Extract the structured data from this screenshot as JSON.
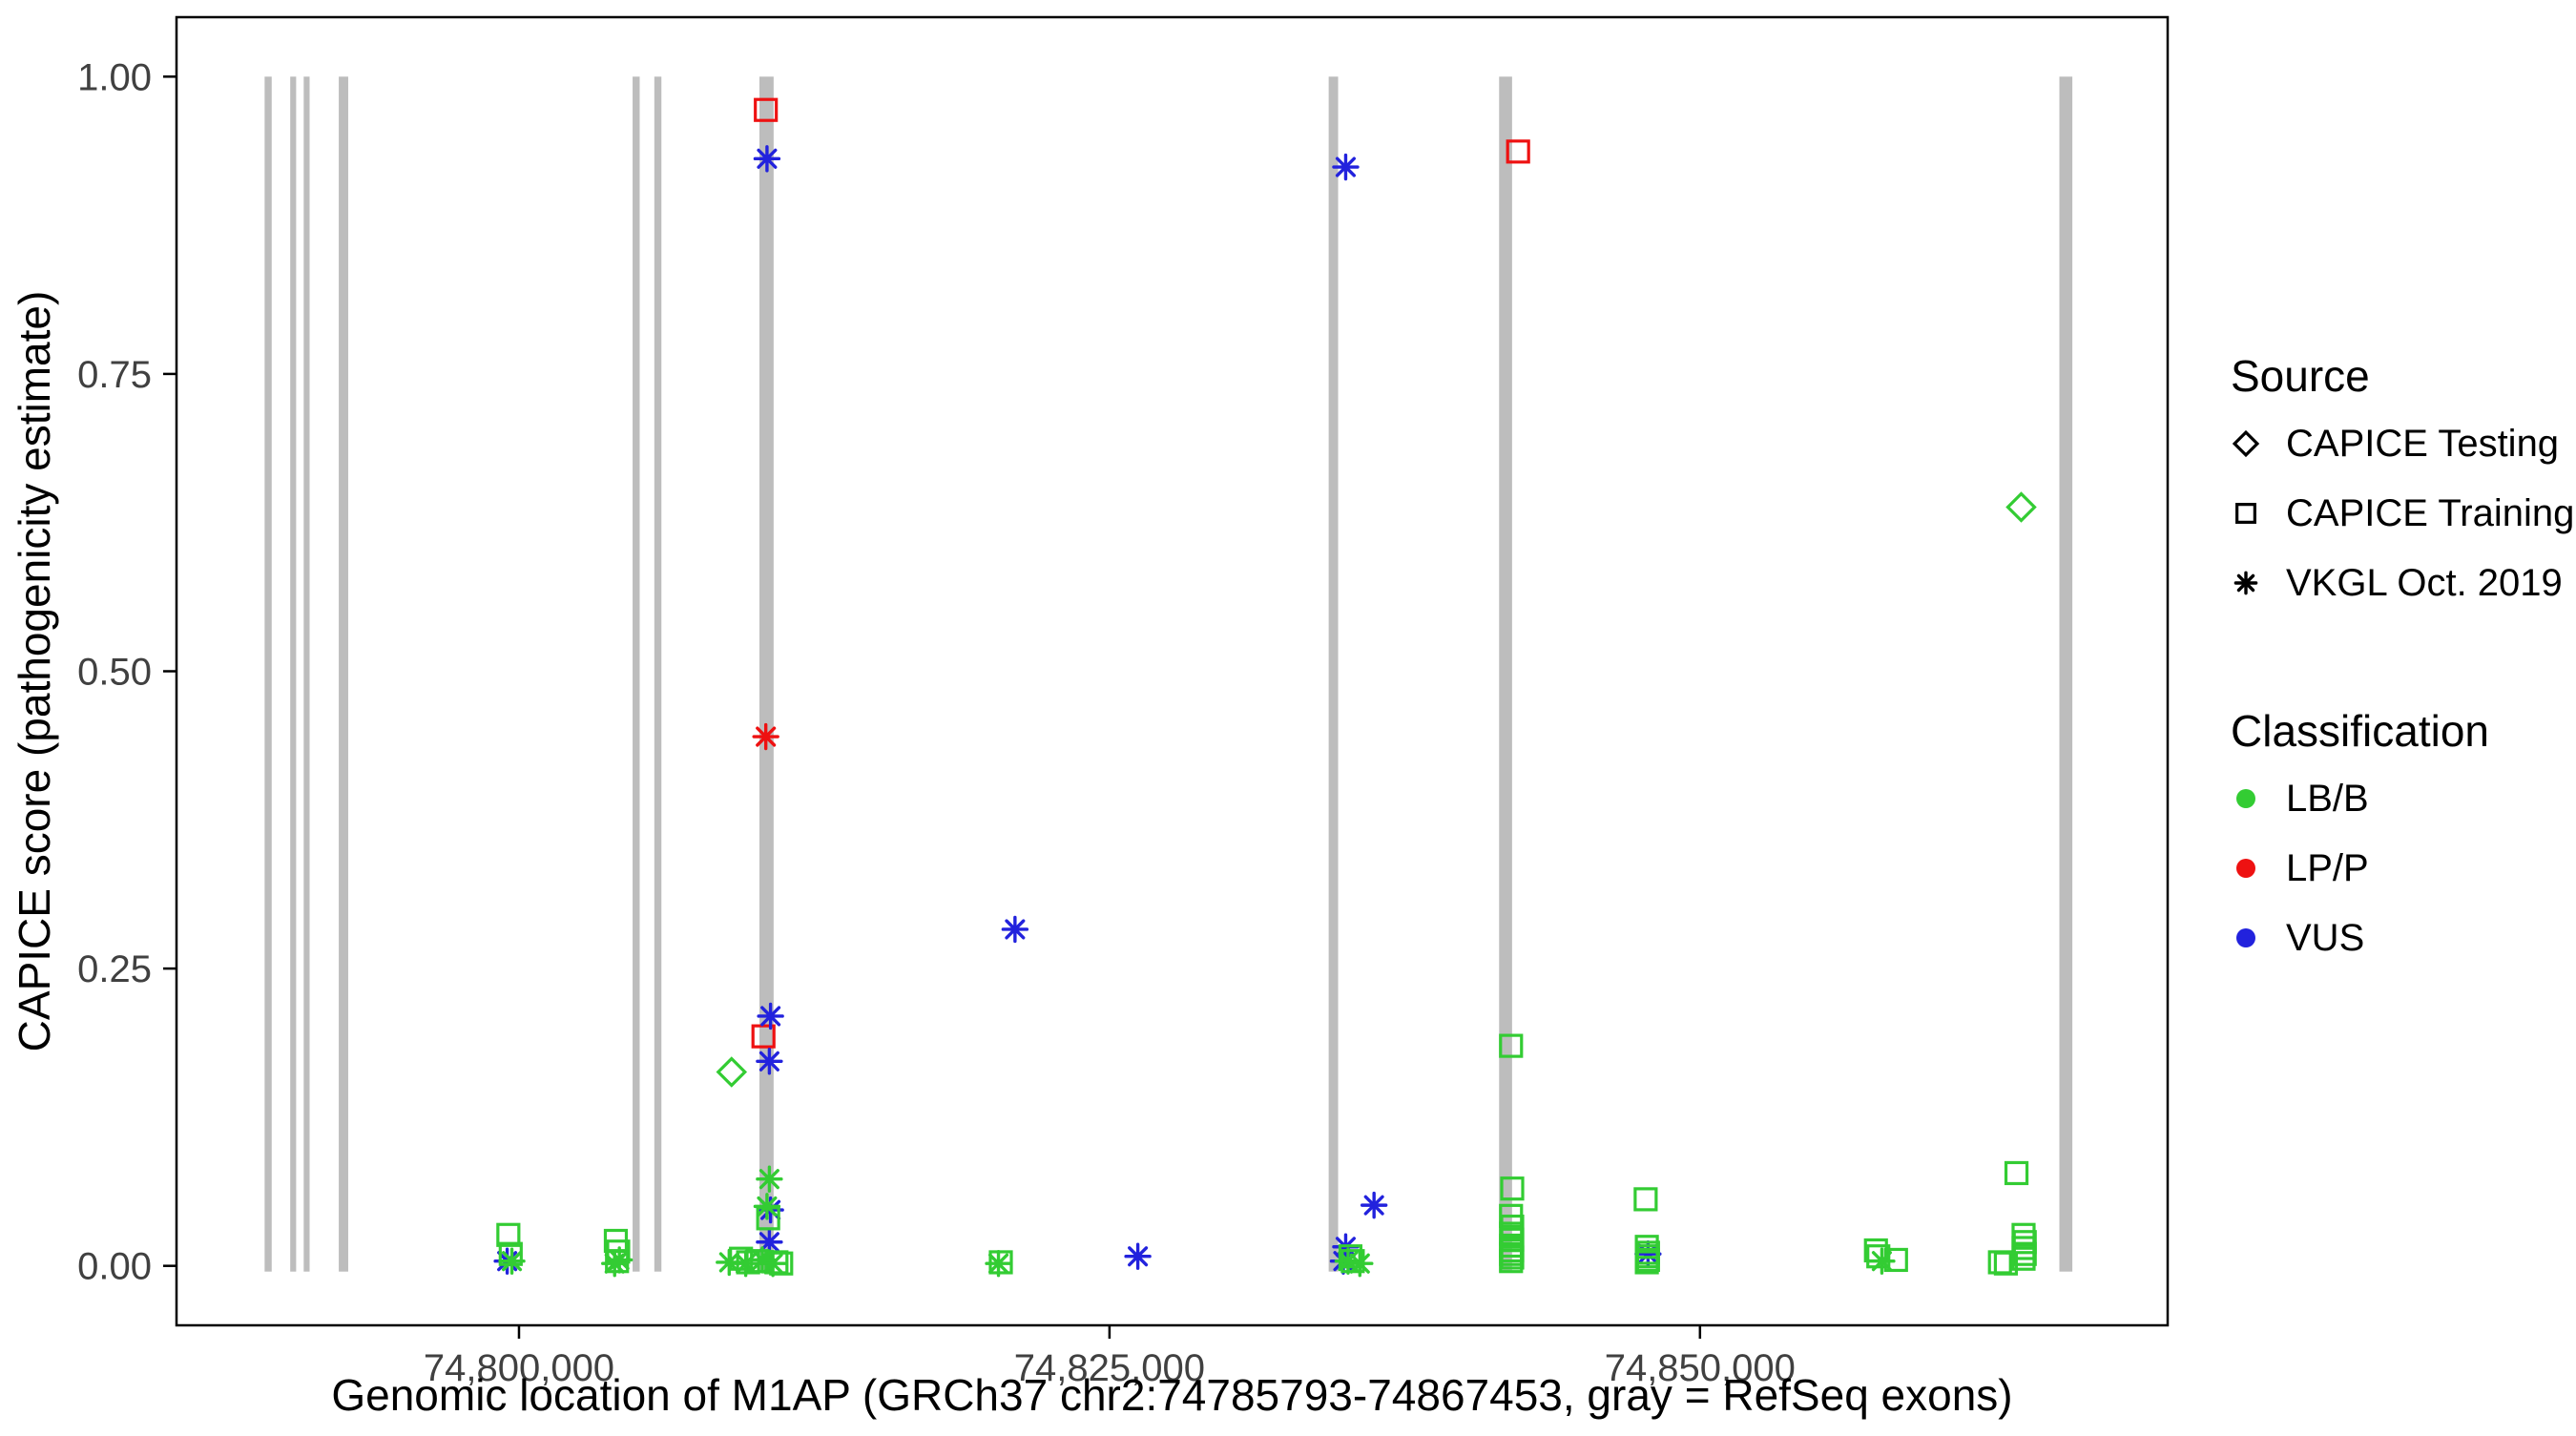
{
  "chart_data": {
    "type": "scatter",
    "title": "",
    "xlabel": "Genomic location of M1AP (GRCh37 chr2:74785793-74867453, gray = RefSeq exons)",
    "ylabel": "CAPICE score (pathogenicity estimate)",
    "xlim": [
      74785500,
      74869800
    ],
    "ylim": [
      -0.05,
      1.05
    ],
    "grid": "off",
    "x_ticks": [
      {
        "value": 74800000,
        "label": "74,800,000"
      },
      {
        "value": 74825000,
        "label": "74,825,000"
      },
      {
        "value": 74850000,
        "label": "74,850,000"
      }
    ],
    "y_ticks": [
      {
        "value": 0.0,
        "label": "0.00"
      },
      {
        "value": 0.25,
        "label": "0.25"
      },
      {
        "value": 0.5,
        "label": "0.50"
      },
      {
        "value": 0.75,
        "label": "0.75"
      },
      {
        "value": 1.0,
        "label": "1.00"
      }
    ],
    "exon_color": "#BDBDBD",
    "exons": [
      [
        74789230,
        74789530
      ],
      [
        74790315,
        74790565
      ],
      [
        74790885,
        74791135
      ],
      [
        74792370,
        74792770
      ],
      [
        74804810,
        74805110
      ],
      [
        74805730,
        74806030
      ],
      [
        74810180,
        74810780
      ],
      [
        74834280,
        74834680
      ],
      [
        74841495,
        74842045
      ],
      [
        74865215,
        74865765
      ]
    ],
    "legend": {
      "source_title": "Source",
      "sources": [
        {
          "label": "CAPICE Testing",
          "marker": "diamond"
        },
        {
          "label": "CAPICE Training",
          "marker": "square"
        },
        {
          "label": "VKGL Oct. 2019",
          "marker": "asterisk"
        }
      ],
      "classification_title": "Classification",
      "classifications": [
        {
          "label": "LB/B",
          "color": "#33CC33"
        },
        {
          "label": "LP/P",
          "color": "#EE1111"
        },
        {
          "label": "VUS",
          "color": "#2222DD"
        }
      ]
    },
    "points": [
      {
        "x": 74809000,
        "y": 0.163,
        "source": "CAPICE Testing",
        "classification": "LB/B"
      },
      {
        "x": 74863600,
        "y": 0.638,
        "source": "CAPICE Testing",
        "classification": "LB/B"
      },
      {
        "x": 74810450,
        "y": 0.972,
        "source": "CAPICE Training",
        "classification": "LP/P"
      },
      {
        "x": 74810350,
        "y": 0.193,
        "source": "CAPICE Training",
        "classification": "LP/P"
      },
      {
        "x": 74842300,
        "y": 0.937,
        "source": "CAPICE Training",
        "classification": "LP/P"
      },
      {
        "x": 74810450,
        "y": 0.445,
        "source": "VKGL Oct. 2019",
        "classification": "LP/P"
      },
      {
        "x": 74810500,
        "y": 0.931,
        "source": "VKGL Oct. 2019",
        "classification": "VUS"
      },
      {
        "x": 74835000,
        "y": 0.924,
        "source": "VKGL Oct. 2019",
        "classification": "VUS"
      },
      {
        "x": 74821000,
        "y": 0.283,
        "source": "VKGL Oct. 2019",
        "classification": "VUS"
      },
      {
        "x": 74810650,
        "y": 0.21,
        "source": "VKGL Oct. 2019",
        "classification": "VUS"
      },
      {
        "x": 74810600,
        "y": 0.172,
        "source": "VKGL Oct. 2019",
        "classification": "VUS"
      },
      {
        "x": 74810650,
        "y": 0.047,
        "source": "VKGL Oct. 2019",
        "classification": "VUS"
      },
      {
        "x": 74810600,
        "y": 0.02,
        "source": "VKGL Oct. 2019",
        "classification": "VUS"
      },
      {
        "x": 74826200,
        "y": 0.008,
        "source": "VKGL Oct. 2019",
        "classification": "VUS"
      },
      {
        "x": 74836200,
        "y": 0.051,
        "source": "VKGL Oct. 2019",
        "classification": "VUS"
      },
      {
        "x": 74835000,
        "y": 0.016,
        "source": "VKGL Oct. 2019",
        "classification": "VUS"
      },
      {
        "x": 74834900,
        "y": 0.004,
        "source": "VKGL Oct. 2019",
        "classification": "VUS"
      },
      {
        "x": 74799500,
        "y": 0.004,
        "source": "VKGL Oct. 2019",
        "classification": "VUS"
      },
      {
        "x": 74847800,
        "y": 0.01,
        "source": "VKGL Oct. 2019",
        "classification": "VUS"
      },
      {
        "x": 74799550,
        "y": 0.026,
        "source": "CAPICE Training",
        "classification": "LB/B"
      },
      {
        "x": 74799650,
        "y": 0.01,
        "source": "CAPICE Training",
        "classification": "LB/B"
      },
      {
        "x": 74804100,
        "y": 0.021,
        "source": "CAPICE Training",
        "classification": "LB/B"
      },
      {
        "x": 74804200,
        "y": 0.012,
        "source": "CAPICE Training",
        "classification": "LB/B"
      },
      {
        "x": 74804150,
        "y": 0.004,
        "source": "CAPICE Training",
        "classification": "LB/B"
      },
      {
        "x": 74810550,
        "y": 0.04,
        "source": "CAPICE Training",
        "classification": "LB/B"
      },
      {
        "x": 74809400,
        "y": 0.006,
        "source": "CAPICE Training",
        "classification": "LB/B"
      },
      {
        "x": 74809700,
        "y": 0.003,
        "source": "CAPICE Training",
        "classification": "LB/B"
      },
      {
        "x": 74810100,
        "y": 0.004,
        "source": "CAPICE Training",
        "classification": "LB/B"
      },
      {
        "x": 74810900,
        "y": 0.003,
        "source": "CAPICE Training",
        "classification": "LB/B"
      },
      {
        "x": 74811100,
        "y": 0.002,
        "source": "CAPICE Training",
        "classification": "LB/B"
      },
      {
        "x": 74820400,
        "y": 0.003,
        "source": "CAPICE Training",
        "classification": "LB/B"
      },
      {
        "x": 74835200,
        "y": 0.008,
        "source": "CAPICE Training",
        "classification": "LB/B"
      },
      {
        "x": 74835300,
        "y": 0.004,
        "source": "CAPICE Training",
        "classification": "LB/B"
      },
      {
        "x": 74842000,
        "y": 0.185,
        "source": "CAPICE Training",
        "classification": "LB/B"
      },
      {
        "x": 74842050,
        "y": 0.065,
        "source": "CAPICE Training",
        "classification": "LB/B"
      },
      {
        "x": 74842000,
        "y": 0.042,
        "source": "CAPICE Training",
        "classification": "LB/B"
      },
      {
        "x": 74842050,
        "y": 0.033,
        "source": "CAPICE Training",
        "classification": "LB/B"
      },
      {
        "x": 74842000,
        "y": 0.027,
        "source": "CAPICE Training",
        "classification": "LB/B"
      },
      {
        "x": 74842050,
        "y": 0.022,
        "source": "CAPICE Training",
        "classification": "LB/B"
      },
      {
        "x": 74842000,
        "y": 0.017,
        "source": "CAPICE Training",
        "classification": "LB/B"
      },
      {
        "x": 74842050,
        "y": 0.013,
        "source": "CAPICE Training",
        "classification": "LB/B"
      },
      {
        "x": 74842000,
        "y": 0.01,
        "source": "CAPICE Training",
        "classification": "LB/B"
      },
      {
        "x": 74842050,
        "y": 0.007,
        "source": "CAPICE Training",
        "classification": "LB/B"
      },
      {
        "x": 74842000,
        "y": 0.004,
        "source": "CAPICE Training",
        "classification": "LB/B"
      },
      {
        "x": 74847700,
        "y": 0.056,
        "source": "CAPICE Training",
        "classification": "LB/B"
      },
      {
        "x": 74847750,
        "y": 0.016,
        "source": "CAPICE Training",
        "classification": "LB/B"
      },
      {
        "x": 74847800,
        "y": 0.011,
        "source": "CAPICE Training",
        "classification": "LB/B"
      },
      {
        "x": 74847750,
        "y": 0.008,
        "source": "CAPICE Training",
        "classification": "LB/B"
      },
      {
        "x": 74847800,
        "y": 0.005,
        "source": "CAPICE Training",
        "classification": "LB/B"
      },
      {
        "x": 74847750,
        "y": 0.003,
        "source": "CAPICE Training",
        "classification": "LB/B"
      },
      {
        "x": 74857450,
        "y": 0.013,
        "source": "CAPICE Training",
        "classification": "LB/B"
      },
      {
        "x": 74857550,
        "y": 0.008,
        "source": "CAPICE Training",
        "classification": "LB/B"
      },
      {
        "x": 74858300,
        "y": 0.005,
        "source": "CAPICE Training",
        "classification": "LB/B"
      },
      {
        "x": 74863400,
        "y": 0.078,
        "source": "CAPICE Training",
        "classification": "LB/B"
      },
      {
        "x": 74863700,
        "y": 0.026,
        "source": "CAPICE Training",
        "classification": "LB/B"
      },
      {
        "x": 74863750,
        "y": 0.02,
        "source": "CAPICE Training",
        "classification": "LB/B"
      },
      {
        "x": 74863700,
        "y": 0.015,
        "source": "CAPICE Training",
        "classification": "LB/B"
      },
      {
        "x": 74863750,
        "y": 0.01,
        "source": "CAPICE Training",
        "classification": "LB/B"
      },
      {
        "x": 74863700,
        "y": 0.006,
        "source": "CAPICE Training",
        "classification": "LB/B"
      },
      {
        "x": 74862700,
        "y": 0.003,
        "source": "CAPICE Training",
        "classification": "LB/B"
      },
      {
        "x": 74862950,
        "y": 0.002,
        "source": "CAPICE Training",
        "classification": "LB/B"
      },
      {
        "x": 74799700,
        "y": 0.004,
        "source": "VKGL Oct. 2019",
        "classification": "LB/B"
      },
      {
        "x": 74804250,
        "y": 0.005,
        "source": "VKGL Oct. 2019",
        "classification": "LB/B"
      },
      {
        "x": 74804050,
        "y": 0.002,
        "source": "VKGL Oct. 2019",
        "classification": "LB/B"
      },
      {
        "x": 74810600,
        "y": 0.073,
        "source": "VKGL Oct. 2019",
        "classification": "LB/B"
      },
      {
        "x": 74810500,
        "y": 0.05,
        "source": "VKGL Oct. 2019",
        "classification": "LB/B"
      },
      {
        "x": 74808900,
        "y": 0.003,
        "source": "VKGL Oct. 2019",
        "classification": "LB/B"
      },
      {
        "x": 74809600,
        "y": 0.002,
        "source": "VKGL Oct. 2019",
        "classification": "LB/B"
      },
      {
        "x": 74810300,
        "y": 0.005,
        "source": "VKGL Oct. 2019",
        "classification": "LB/B"
      },
      {
        "x": 74810750,
        "y": 0.002,
        "source": "VKGL Oct. 2019",
        "classification": "LB/B"
      },
      {
        "x": 74820300,
        "y": 0.002,
        "source": "VKGL Oct. 2019",
        "classification": "LB/B"
      },
      {
        "x": 74835100,
        "y": 0.004,
        "source": "VKGL Oct. 2019",
        "classification": "LB/B"
      },
      {
        "x": 74835600,
        "y": 0.002,
        "source": "VKGL Oct. 2019",
        "classification": "LB/B"
      },
      {
        "x": 74857700,
        "y": 0.004,
        "source": "VKGL Oct. 2019",
        "classification": "LB/B"
      }
    ]
  }
}
